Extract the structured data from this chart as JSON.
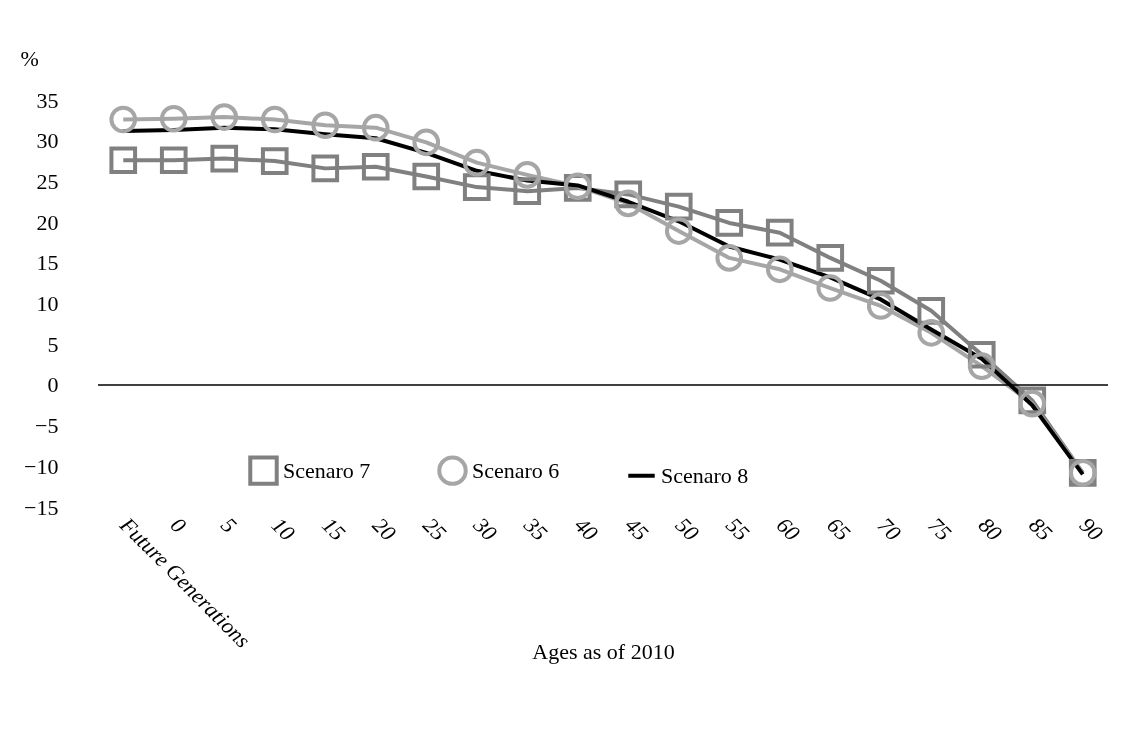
{
  "chart_data": {
    "type": "line",
    "xlabel": "Ages as of 2010",
    "ylabel": "%",
    "categories": [
      "Future Generations",
      "0",
      "5",
      "10",
      "15",
      "20",
      "25",
      "30",
      "35",
      "40",
      "45",
      "50",
      "55",
      "60",
      "65",
      "70",
      "75",
      "80",
      "85",
      "90"
    ],
    "series": [
      {
        "name": "Scenaro 7",
        "color": "#808080",
        "marker": "square",
        "values": [
          27.6,
          27.6,
          27.8,
          27.5,
          26.6,
          26.8,
          25.6,
          24.3,
          23.8,
          24.2,
          23.4,
          21.9,
          19.9,
          18.7,
          15.6,
          12.8,
          9.1,
          3.7,
          -1.9,
          -10.8
        ]
      },
      {
        "name": "Scenaro 6",
        "color": "#a6a6a6",
        "marker": "circle",
        "values": [
          32.6,
          32.7,
          32.9,
          32.6,
          31.9,
          31.6,
          29.8,
          27.3,
          25.8,
          24.4,
          22.3,
          18.9,
          15.6,
          14.2,
          11.9,
          9.7,
          6.4,
          2.3,
          -2.3,
          -10.8
        ]
      },
      {
        "name": "Scenaro 8",
        "color": "#000000",
        "marker": "none",
        "values": [
          31.2,
          31.3,
          31.6,
          31.4,
          30.8,
          30.3,
          28.5,
          26.3,
          25.1,
          24.5,
          22.5,
          20.1,
          17.0,
          15.4,
          13.2,
          10.5,
          6.8,
          3.2,
          -2.5,
          -11.0
        ]
      }
    ],
    "ylim": [
      -15,
      35
    ],
    "yticks": [
      -15,
      -10,
      -5,
      0,
      5,
      10,
      15,
      20,
      25,
      30,
      35
    ],
    "ref_lines": [
      {
        "axis": "y",
        "value": 0,
        "color": "#000000"
      }
    ],
    "grid": false,
    "legend": "bottom"
  }
}
